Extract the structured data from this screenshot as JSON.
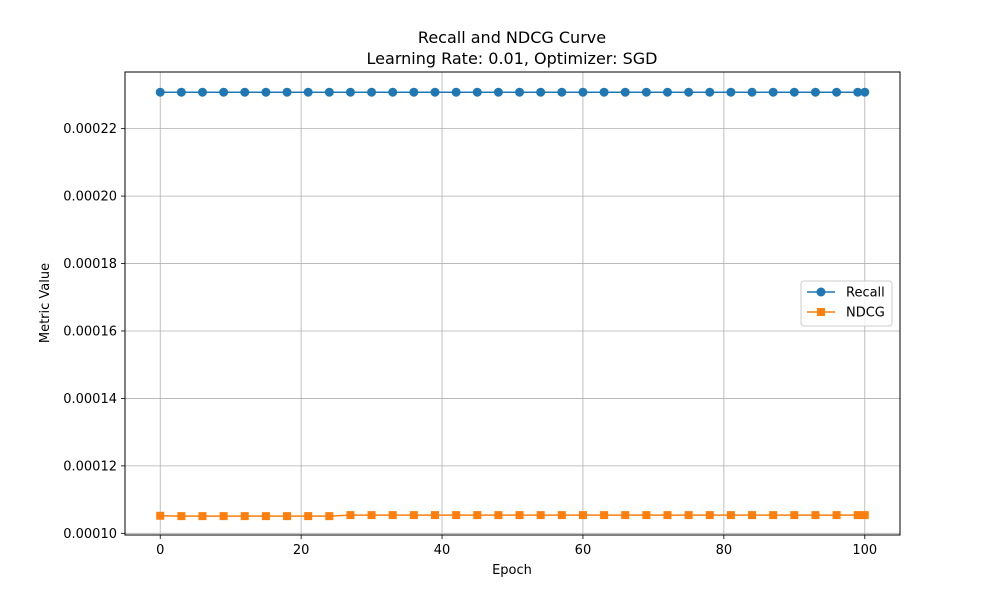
{
  "chart_data": {
    "type": "line",
    "title": "Recall and NDCG Curve",
    "subtitle": "Learning Rate: 0.01, Optimizer: SGD",
    "xlabel": "Epoch",
    "ylabel": "Metric Value",
    "xlim": [
      -5,
      105
    ],
    "ylim": [
      9.95e-05,
      0.0002368
    ],
    "xticks": [
      0,
      20,
      40,
      60,
      80,
      100
    ],
    "xtick_labels": [
      "0",
      "20",
      "40",
      "60",
      "80",
      "100"
    ],
    "yticks": [
      0.0001,
      0.00012,
      0.00014,
      0.00016,
      0.00018,
      0.0002,
      0.00022
    ],
    "ytick_labels": [
      "0.00010",
      "0.00012",
      "0.00014",
      "0.00016",
      "0.00018",
      "0.00020",
      "0.00022"
    ],
    "grid": true,
    "legend_position": "center-right",
    "x": [
      0,
      3,
      6,
      9,
      12,
      15,
      18,
      21,
      24,
      27,
      30,
      33,
      36,
      39,
      42,
      45,
      48,
      51,
      54,
      57,
      60,
      63,
      66,
      69,
      72,
      75,
      78,
      81,
      84,
      87,
      90,
      93,
      96,
      99,
      100
    ],
    "series": [
      {
        "name": "Recall",
        "color": "#1f77b4",
        "marker": "circle",
        "values": [
          0.0002308,
          0.0002308,
          0.0002308,
          0.0002308,
          0.0002308,
          0.0002308,
          0.0002308,
          0.0002308,
          0.0002308,
          0.0002308,
          0.0002308,
          0.0002308,
          0.0002308,
          0.0002308,
          0.0002308,
          0.0002308,
          0.0002308,
          0.0002308,
          0.0002308,
          0.0002308,
          0.0002308,
          0.0002308,
          0.0002308,
          0.0002308,
          0.0002308,
          0.0002308,
          0.0002308,
          0.0002308,
          0.0002308,
          0.0002308,
          0.0002308,
          0.0002308,
          0.0002308,
          0.0002308,
          0.0002308
        ]
      },
      {
        "name": "NDCG",
        "color": "#ff7f0e",
        "marker": "square",
        "values": [
          0.0001052,
          0.0001051,
          0.0001051,
          0.0001051,
          0.0001051,
          0.0001051,
          0.0001051,
          0.0001051,
          0.0001051,
          0.0001054,
          0.0001054,
          0.0001054,
          0.0001054,
          0.0001054,
          0.0001054,
          0.0001054,
          0.0001054,
          0.0001054,
          0.0001054,
          0.0001054,
          0.0001054,
          0.0001054,
          0.0001054,
          0.0001054,
          0.0001054,
          0.0001054,
          0.0001054,
          0.0001054,
          0.0001054,
          0.0001054,
          0.0001054,
          0.0001054,
          0.0001054,
          0.0001054,
          0.0001054
        ]
      }
    ]
  }
}
